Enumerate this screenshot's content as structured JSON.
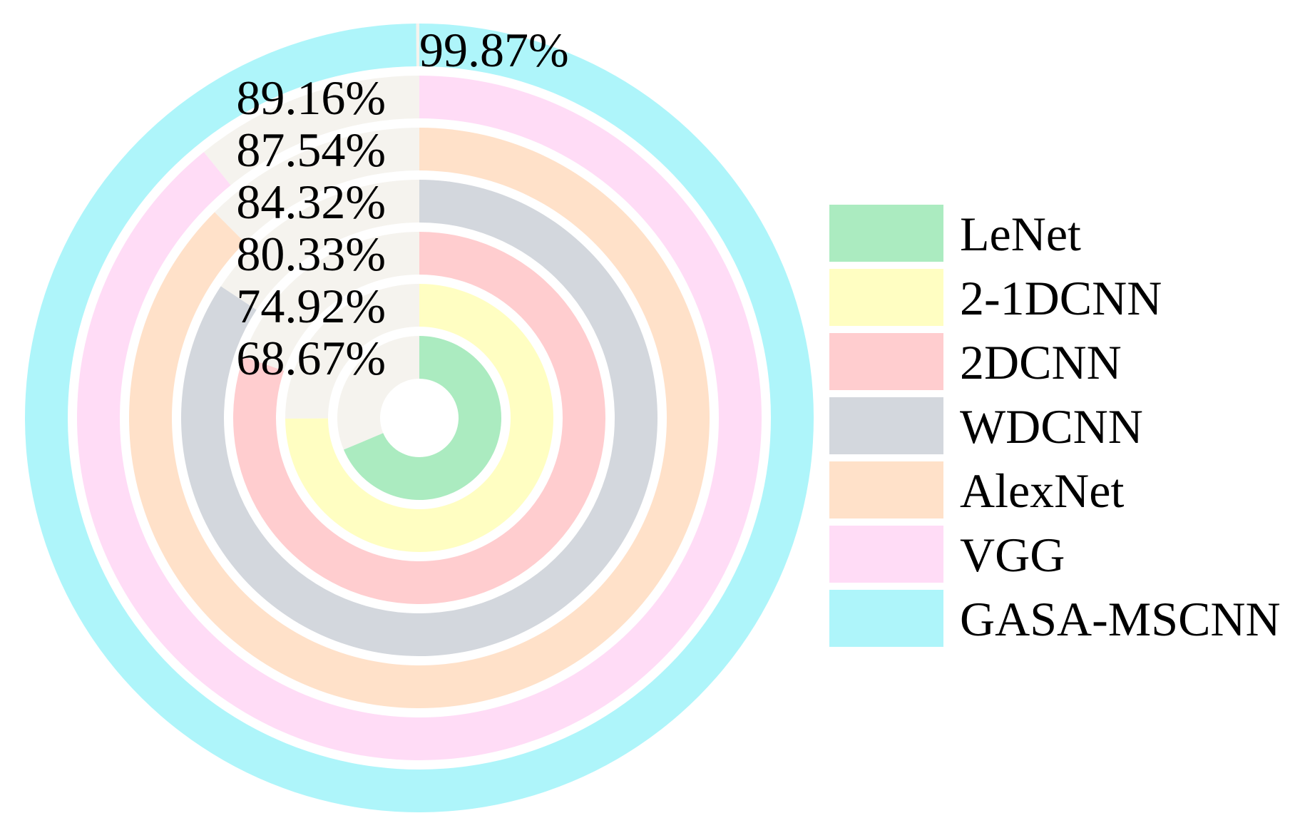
{
  "chart_data": {
    "type": "radial-bar",
    "unit": "%",
    "track_color": "#f5f3ee",
    "series": [
      {
        "name": "LeNet",
        "value": 68.67,
        "label": "68.67%",
        "color": "#abebc0"
      },
      {
        "name": "2-1DCNN",
        "value": 74.92,
        "label": "74.92%",
        "color": "#fffec2"
      },
      {
        "name": "2DCNN",
        "value": 80.33,
        "label": "80.33%",
        "color": "#ffcdcf"
      },
      {
        "name": "WDCNN",
        "value": 84.32,
        "label": "84.32%",
        "color": "#d3d7dd"
      },
      {
        "name": "AlexNet",
        "value": 87.54,
        "label": "87.54%",
        "color": "#ffe1c9"
      },
      {
        "name": "VGG",
        "value": 89.16,
        "label": "89.16%",
        "color": "#ffdcf6"
      },
      {
        "name": "GASA-MSCNN",
        "value": 99.87,
        "label": "99.87%",
        "color": "#aef5fa"
      }
    ],
    "legend": {
      "position": "right",
      "items": [
        "LeNet",
        "2-1DCNN",
        "2DCNN",
        "WDCNN",
        "AlexNet",
        "VGG",
        "GASA-MSCNN"
      ]
    }
  }
}
